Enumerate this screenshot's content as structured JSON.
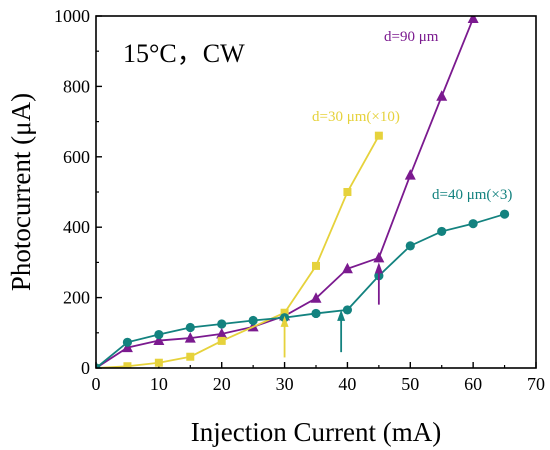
{
  "chart_data": {
    "type": "line",
    "xlabel": "Injection Current (mA)",
    "ylabel": "Photocurrent (μA)",
    "xlim": [
      0,
      70
    ],
    "ylim": [
      0,
      1000
    ],
    "xticks": [
      "0",
      "10",
      "20",
      "30",
      "40",
      "50",
      "60",
      "70"
    ],
    "yticks": [
      "0",
      "200",
      "400",
      "600",
      "800",
      "1000"
    ],
    "grid": false,
    "annotation": "15°C，CW",
    "series": [
      {
        "name": "d=90 μm",
        "color": "#7b1a8f",
        "marker": "triangle",
        "x": [
          0,
          5,
          10,
          15,
          20,
          25,
          30,
          35,
          40,
          45,
          50,
          55,
          60
        ],
        "y": [
          0,
          58,
          78,
          85,
          97,
          117,
          148,
          198,
          282,
          313,
          548,
          772,
          993
        ]
      },
      {
        "name": "d=30 μm(×10)",
        "color": "#e6d23c",
        "marker": "square",
        "x": [
          0,
          5,
          10,
          15,
          20,
          30,
          35,
          40,
          45
        ],
        "y": [
          0,
          5,
          15,
          32,
          77,
          157,
          290,
          500,
          660
        ]
      },
      {
        "name": "d=40 μm(×3)",
        "color": "#13827f",
        "marker": "circle",
        "x": [
          0,
          5,
          10,
          15,
          20,
          25,
          30,
          35,
          40,
          45,
          50,
          55,
          60,
          65
        ],
        "y": [
          0,
          73,
          95,
          115,
          125,
          135,
          143,
          155,
          165,
          262,
          347,
          388,
          410,
          437
        ]
      }
    ],
    "arrows": [
      {
        "x": 30,
        "y_from": 30,
        "y_to": 148,
        "color": "#e6d23c"
      },
      {
        "x": 39,
        "y_from": 45,
        "y_to": 165,
        "color": "#13827f"
      },
      {
        "x": 45,
        "y_from": 180,
        "y_to": 300,
        "color": "#7b1a8f"
      }
    ]
  }
}
